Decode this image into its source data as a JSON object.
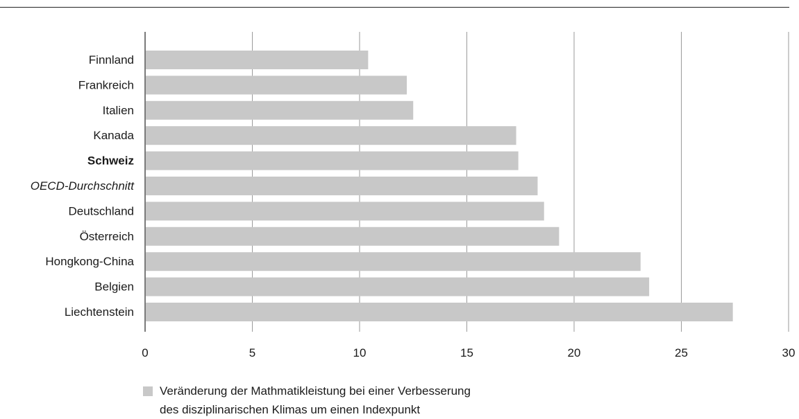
{
  "chart_data": {
    "type": "bar",
    "orientation": "horizontal",
    "categories": [
      "Finnland",
      "Frankreich",
      "Italien",
      "Kanada",
      "Schweiz",
      "OECD-Durchschnitt",
      "Deutschland",
      "Österreich",
      "Hongkong-China",
      "Belgien",
      "Liechtenstein"
    ],
    "category_styles": [
      "normal",
      "normal",
      "normal",
      "normal",
      "bold",
      "italic",
      "normal",
      "normal",
      "normal",
      "normal",
      "normal"
    ],
    "values": [
      10.4,
      12.2,
      12.5,
      17.3,
      17.4,
      18.3,
      18.6,
      19.3,
      23.1,
      23.5,
      27.4
    ],
    "series": [
      {
        "name": "Veränderung der Mathmatikleistung bei einer Verbesserung des disziplinarischen Klimas um einen Indexpunkt",
        "color": "#c8c8c8"
      }
    ],
    "xlim": [
      0,
      30
    ],
    "xticks": [
      "0",
      "5",
      "10",
      "15",
      "20",
      "25",
      "30"
    ],
    "grid": "vertical",
    "legend_position": "bottom-left"
  },
  "legend": {
    "line1": "Veränderung der Mathmatikleistung bei einer Verbesserung",
    "line2": "des disziplinarischen Klimas um einen Indexpunkt"
  }
}
